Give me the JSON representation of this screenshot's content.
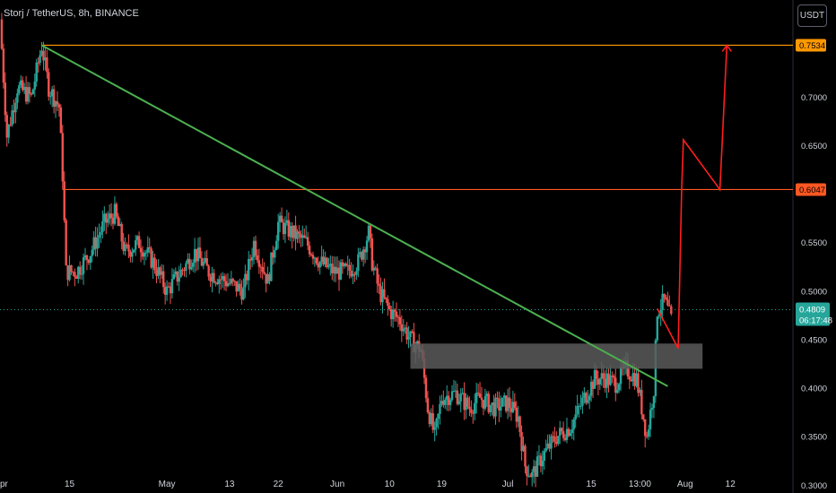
{
  "header": {
    "title": "Storj / TetherUS, 8h, BINANCE",
    "currency_button": "USDT"
  },
  "chart_data": {
    "type": "candlestick",
    "symbol": "Storj / TetherUS",
    "interval": "8h",
    "exchange": "BINANCE",
    "ylim": [
      0.292,
      0.8
    ],
    "y_ticks": [
      "0.3000",
      "0.3500",
      "0.4000",
      "0.4500",
      "0.5000",
      "0.5500",
      "0.6500",
      "0.7000"
    ],
    "x_ticks": [
      "pr",
      "15",
      "May",
      "13",
      "22",
      "Jun",
      "10",
      "19",
      "Jul",
      "15",
      "13:00",
      "Aug",
      "12"
    ],
    "x_tick_positions": [
      0,
      20,
      48,
      66,
      80,
      97,
      112,
      127,
      146,
      170,
      184,
      197,
      210
    ],
    "x_range": [
      0,
      228
    ],
    "current_price": {
      "value": 0.4809,
      "label": "0.4809",
      "countdown": "06:17:48",
      "color": "#26a69a"
    },
    "horizontal_levels": [
      {
        "value": 0.7534,
        "label": "0.7534",
        "color": "#ff9800",
        "x_start": 12
      },
      {
        "value": 0.6047,
        "label": "0.6047",
        "color": "#ff5722",
        "x_start": 18
      }
    ],
    "trendline": {
      "color": "#4caf50",
      "points": [
        [
          12,
          0.7534
        ],
        [
          192,
          0.402
        ]
      ]
    },
    "zone": {
      "x": [
        118,
        202
      ],
      "y": [
        0.42,
        0.446
      ],
      "color": "#5a5a5a"
    },
    "projection": {
      "color": "#ff1e1e",
      "points": [
        [
          189,
          0.482
        ],
        [
          195,
          0.441
        ],
        [
          196,
          0.6047
        ],
        [
          196.5,
          0.656
        ],
        [
          207,
          0.6047
        ],
        [
          209,
          0.7534
        ]
      ]
    },
    "candle_colors": {
      "up": "#26a69a",
      "down": "#ef5350"
    },
    "anchors": [
      [
        0,
        0.78
      ],
      [
        2,
        0.66
      ],
      [
        5,
        0.71
      ],
      [
        9,
        0.7
      ],
      [
        12,
        0.753
      ],
      [
        14,
        0.71
      ],
      [
        17,
        0.69
      ],
      [
        18,
        0.62
      ],
      [
        19,
        0.52
      ],
      [
        22,
        0.52
      ],
      [
        26,
        0.54
      ],
      [
        30,
        0.57
      ],
      [
        33,
        0.58
      ],
      [
        36,
        0.54
      ],
      [
        40,
        0.55
      ],
      [
        44,
        0.53
      ],
      [
        48,
        0.5
      ],
      [
        52,
        0.52
      ],
      [
        56,
        0.54
      ],
      [
        60,
        0.52
      ],
      [
        65,
        0.51
      ],
      [
        70,
        0.5
      ],
      [
        73,
        0.55
      ],
      [
        77,
        0.51
      ],
      [
        80,
        0.57
      ],
      [
        84,
        0.56
      ],
      [
        88,
        0.55
      ],
      [
        92,
        0.53
      ],
      [
        96,
        0.52
      ],
      [
        100,
        0.52
      ],
      [
        103,
        0.53
      ],
      [
        106,
        0.56
      ],
      [
        107,
        0.53
      ],
      [
        109,
        0.5
      ],
      [
        112,
        0.48
      ],
      [
        115,
        0.47
      ],
      [
        118,
        0.45
      ],
      [
        121,
        0.44
      ],
      [
        123,
        0.38
      ],
      [
        125,
        0.35
      ],
      [
        127,
        0.39
      ],
      [
        131,
        0.395
      ],
      [
        135,
        0.38
      ],
      [
        138,
        0.39
      ],
      [
        142,
        0.38
      ],
      [
        146,
        0.385
      ],
      [
        149,
        0.37
      ],
      [
        151,
        0.32
      ],
      [
        153,
        0.31
      ],
      [
        156,
        0.33
      ],
      [
        160,
        0.35
      ],
      [
        164,
        0.36
      ],
      [
        168,
        0.39
      ],
      [
        171,
        0.41
      ],
      [
        174,
        0.41
      ],
      [
        177,
        0.405
      ],
      [
        180,
        0.42
      ],
      [
        183,
        0.41
      ],
      [
        185,
        0.37
      ],
      [
        186,
        0.35
      ],
      [
        188,
        0.4
      ],
      [
        189,
        0.48
      ],
      [
        191,
        0.49
      ],
      [
        193,
        0.47
      ]
    ]
  }
}
